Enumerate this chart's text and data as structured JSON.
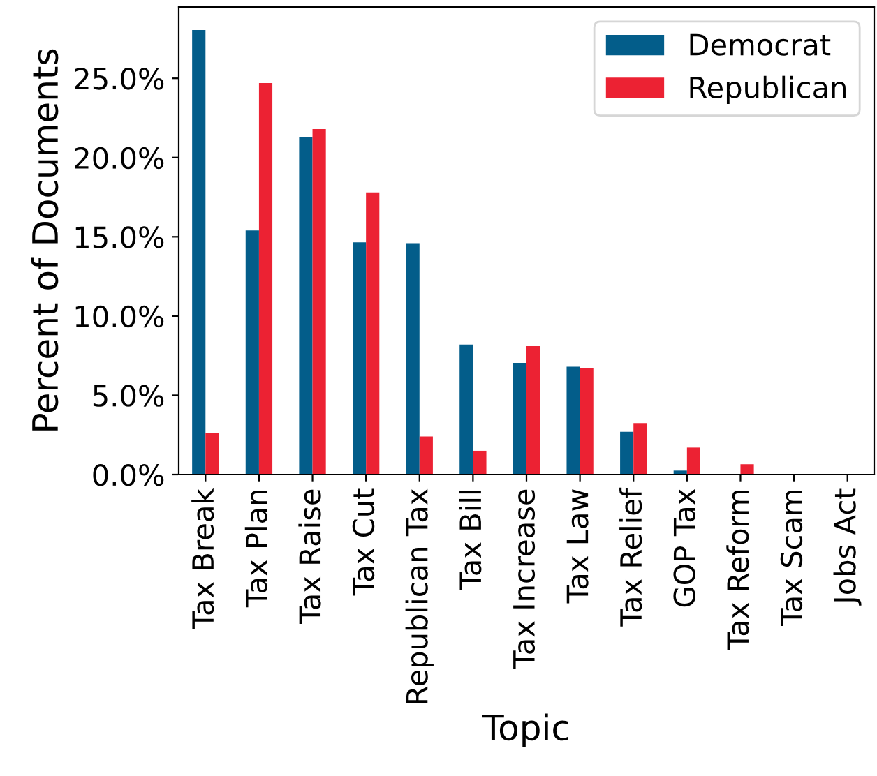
{
  "chart_data": {
    "type": "bar",
    "xlabel": "Topic",
    "ylabel": "Percent of Documents",
    "categories": [
      "Tax Break",
      "Tax Plan",
      "Tax Raise",
      "Tax Cut",
      "Republican Tax",
      "Tax Bill",
      "Tax Increase",
      "Tax Law",
      "Tax Relief",
      "GOP Tax",
      "Tax Reform",
      "Tax Scam",
      "Jobs Act"
    ],
    "series": [
      {
        "name": "Democrat",
        "color": "#035d8a",
        "values": [
          28.05,
          15.4,
          21.3,
          14.65,
          14.6,
          8.2,
          7.05,
          6.8,
          2.7,
          0.25,
          0,
          0,
          0
        ]
      },
      {
        "name": "Republican",
        "color": "#ec2233",
        "values": [
          2.6,
          24.7,
          21.8,
          17.8,
          2.4,
          1.5,
          8.1,
          6.7,
          3.25,
          1.7,
          0.65,
          0,
          0
        ]
      }
    ],
    "ylim": [
      0,
      29.5
    ],
    "yticks": [
      {
        "value": 0,
        "label": "0.0%"
      },
      {
        "value": 5,
        "label": "5.0%"
      },
      {
        "value": 10,
        "label": "10.0%"
      },
      {
        "value": 15,
        "label": "15.0%"
      },
      {
        "value": 20,
        "label": "20.0%"
      },
      {
        "value": 25,
        "label": "25.0%"
      }
    ],
    "legend": "top right",
    "grid": false
  }
}
